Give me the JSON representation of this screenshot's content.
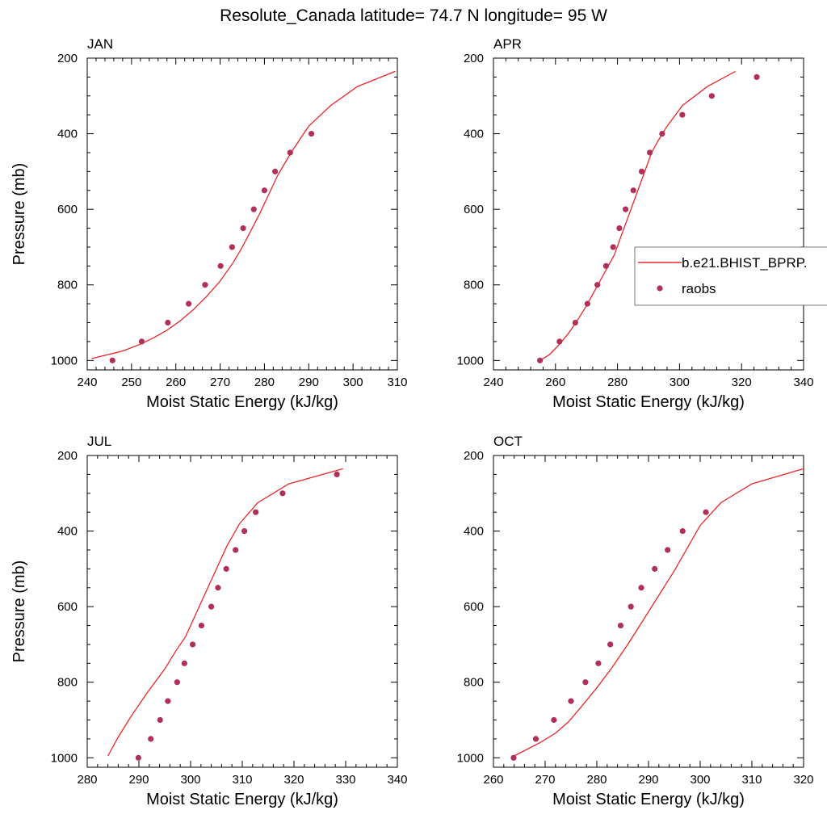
{
  "title": "Resolute_Canada  latitude= 74.7 N longitude= 95 W",
  "colors": {
    "model_line": "#e8262a",
    "obs_marker": "#b03058"
  },
  "legend": {
    "model_label": "b.e21.BHIST_BPRP.",
    "obs_label": "raobs",
    "placement": "right-center, attached to APR panel"
  },
  "chart_data": [
    {
      "type": "line",
      "panel_title": "JAN",
      "xlabel": "Moist Static Energy (kJ/kg)",
      "ylabel": "Pressure (mb)",
      "xlim": [
        240,
        310
      ],
      "ylim": [
        1025,
        200
      ],
      "y_reversed": true,
      "xticks": [
        240,
        250,
        260,
        270,
        280,
        290,
        300,
        310
      ],
      "yticks": [
        200,
        400,
        600,
        800,
        1000
      ],
      "series": [
        {
          "name": "b.e21.BHIST_BPRP.",
          "kind": "line",
          "x": [
            241,
            248,
            252,
            255,
            258,
            261,
            264,
            267,
            270,
            273,
            275,
            277,
            279,
            281,
            283,
            286,
            290,
            295,
            301,
            309.5
          ],
          "y": [
            995,
            975,
            957,
            940,
            920,
            895,
            865,
            830,
            790,
            740,
            700,
            655,
            610,
            560,
            510,
            450,
            380,
            325,
            275,
            235
          ]
        },
        {
          "name": "raobs",
          "kind": "scatter",
          "x": [
            245.7,
            252.3,
            258.2,
            262.9,
            266.6,
            270.1,
            272.7,
            275.2,
            277.6,
            280.0,
            282.4,
            285.8,
            290.6
          ],
          "y": [
            1000,
            950,
            900,
            850,
            800,
            750,
            700,
            650,
            600,
            550,
            500,
            450,
            400
          ]
        }
      ]
    },
    {
      "type": "line",
      "panel_title": "APR",
      "xlabel": "Moist Static Energy (kJ/kg)",
      "ylabel": "",
      "xlim": [
        240,
        340
      ],
      "ylim": [
        1025,
        200
      ],
      "y_reversed": true,
      "xticks": [
        240,
        260,
        280,
        300,
        320,
        340
      ],
      "yticks": [
        200,
        400,
        600,
        800,
        1000
      ],
      "series": [
        {
          "name": "b.e21.BHIST_BPRP.",
          "kind": "line",
          "x": [
            255,
            258,
            261,
            264,
            267,
            270,
            273,
            276,
            279,
            281,
            283,
            285,
            287,
            289,
            291,
            293,
            296,
            301,
            309,
            318
          ],
          "y": [
            1000,
            985,
            960,
            930,
            895,
            855,
            810,
            765,
            720,
            675,
            630,
            585,
            540,
            495,
            450,
            420,
            380,
            325,
            275,
            235
          ]
        },
        {
          "name": "raobs",
          "kind": "scatter",
          "x": [
            255,
            261.3,
            266.4,
            270.3,
            273.5,
            276.3,
            278.6,
            280.6,
            282.6,
            285.1,
            287.8,
            290.4,
            294.4,
            300.9,
            310.4,
            324.9
          ],
          "y": [
            1000,
            950,
            900,
            850,
            800,
            750,
            700,
            650,
            600,
            550,
            500,
            450,
            400,
            350,
            300,
            250
          ]
        }
      ]
    },
    {
      "type": "line",
      "panel_title": "JUL",
      "xlabel": "Moist Static Energy (kJ/kg)",
      "ylabel": "Pressure (mb)",
      "xlim": [
        280,
        340
      ],
      "ylim": [
        1025,
        200
      ],
      "y_reversed": true,
      "xticks": [
        280,
        290,
        300,
        310,
        320,
        330,
        340
      ],
      "yticks": [
        200,
        400,
        600,
        800,
        1000
      ],
      "series": [
        {
          "name": "b.e21.BHIST_BPRP.",
          "kind": "line",
          "x": [
            284,
            286,
            288.5,
            291.5,
            295,
            297,
            299,
            301,
            303,
            305,
            307,
            309.5,
            313,
            319,
            329.5
          ],
          "y": [
            995,
            945,
            890,
            830,
            765,
            720,
            680,
            620,
            560,
            500,
            440,
            380,
            325,
            275,
            235
          ]
        },
        {
          "name": "raobs",
          "kind": "scatter",
          "x": [
            289.9,
            292.3,
            294.1,
            295.6,
            297.4,
            298.8,
            300.4,
            302.1,
            304.0,
            305.3,
            306.9,
            308.7,
            310.4,
            312.6,
            317.8,
            328.3
          ],
          "y": [
            1000,
            950,
            900,
            850,
            800,
            750,
            700,
            650,
            600,
            550,
            500,
            450,
            400,
            350,
            300,
            250
          ]
        }
      ]
    },
    {
      "type": "line",
      "panel_title": "OCT",
      "xlabel": "Moist Static Energy (kJ/kg)",
      "ylabel": "",
      "xlim": [
        260,
        320
      ],
      "ylim": [
        1025,
        200
      ],
      "y_reversed": true,
      "xticks": [
        260,
        270,
        280,
        290,
        300,
        310,
        320
      ],
      "yticks": [
        200,
        400,
        600,
        800,
        1000
      ],
      "series": [
        {
          "name": "b.e21.BHIST_BPRP.",
          "kind": "line",
          "x": [
            264,
            269,
            272,
            274.5,
            277,
            280,
            283,
            286,
            289,
            292,
            295,
            297.5,
            300,
            304,
            310,
            320
          ],
          "y": [
            995,
            960,
            935,
            905,
            865,
            815,
            760,
            700,
            635,
            570,
            505,
            445,
            385,
            325,
            275,
            235
          ]
        },
        {
          "name": "raobs",
          "kind": "scatter",
          "x": [
            263.9,
            268.2,
            271.7,
            275.0,
            277.8,
            280.3,
            282.6,
            284.6,
            286.6,
            288.6,
            291.2,
            293.7,
            296.6,
            301.1
          ],
          "y": [
            1000,
            950,
            900,
            850,
            800,
            750,
            700,
            650,
            600,
            550,
            500,
            450,
            400,
            350
          ]
        }
      ]
    }
  ]
}
